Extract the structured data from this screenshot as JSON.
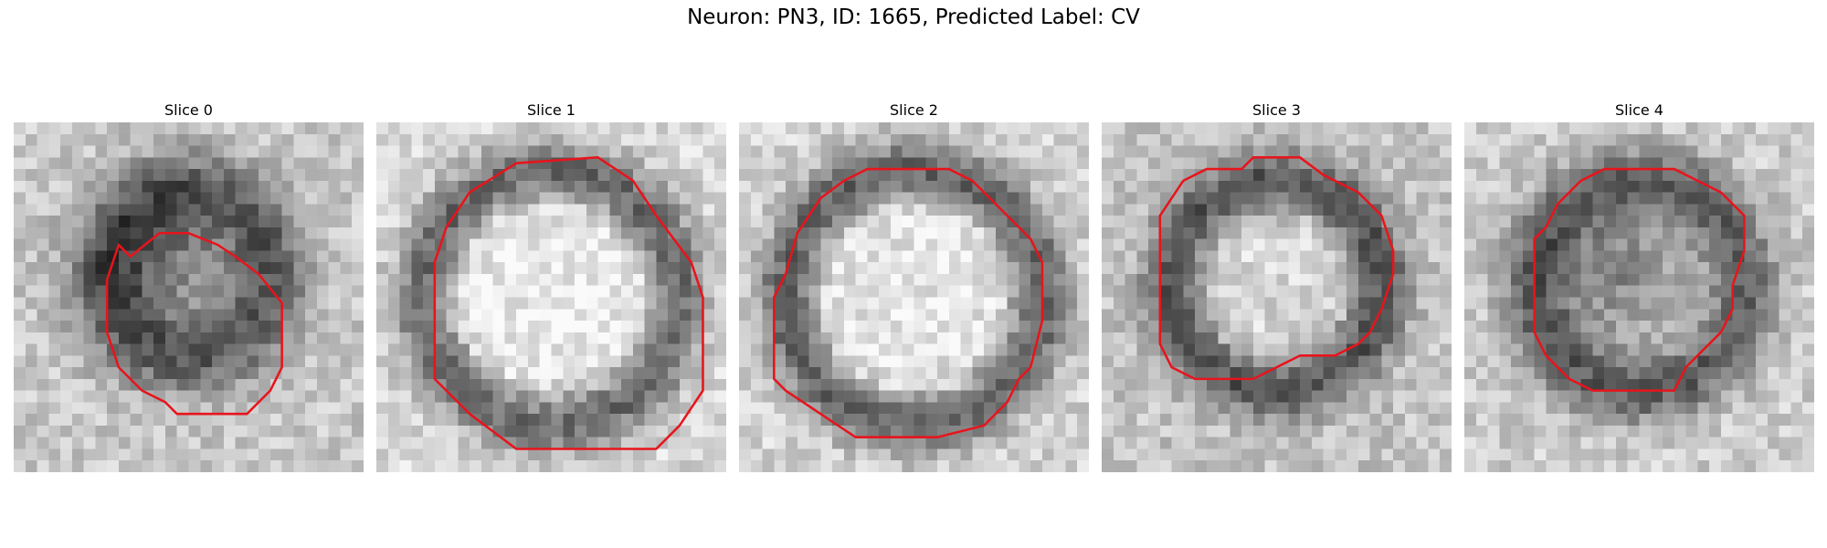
{
  "figure": {
    "title": "Neuron: PN3, ID: 1665, Predicted Label: CV"
  },
  "colors": {
    "contour": "#e8141c",
    "background": "#ffffff"
  },
  "panels": [
    {
      "title": "Slice 0"
    },
    {
      "title": "Slice 1"
    },
    {
      "title": "Slice 2"
    },
    {
      "title": "Slice 3"
    },
    {
      "title": "Slice 4"
    }
  ]
}
